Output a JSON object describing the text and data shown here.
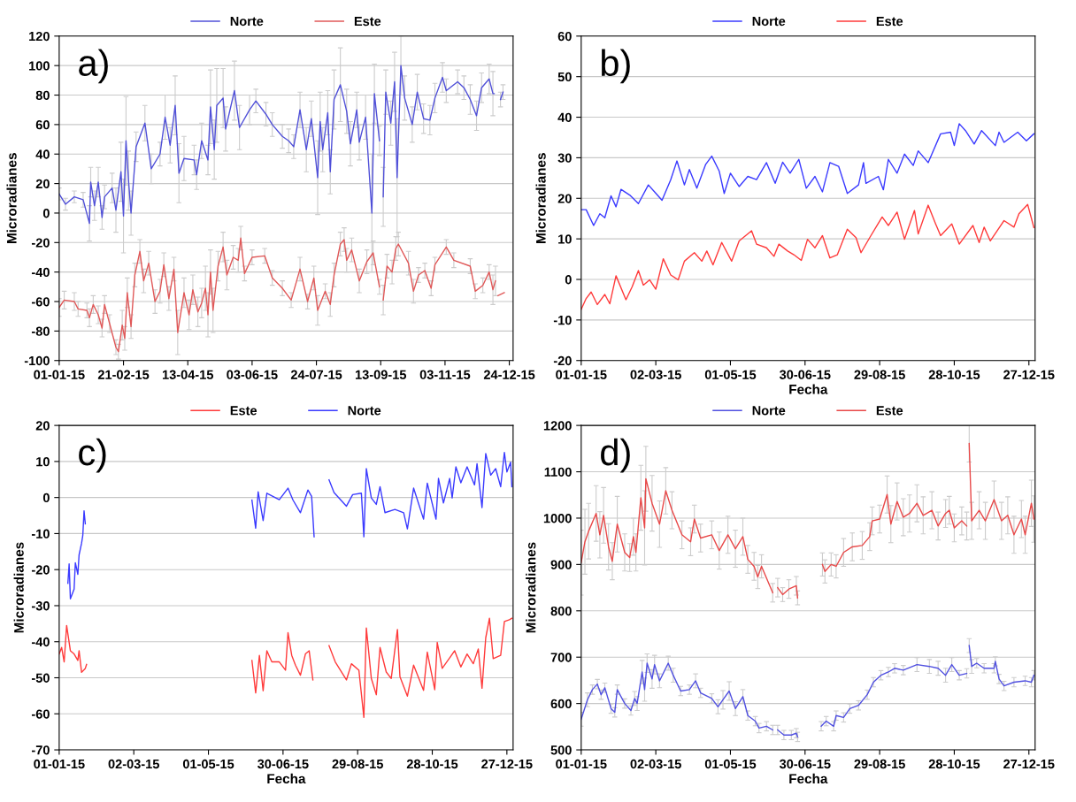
{
  "chart_data": [
    {
      "type": "line",
      "annotations": [
        "a)"
      ],
      "ylabel": "Microradianes",
      "legend": "top",
      "grid": "y",
      "xlim": [
        "2015-01-01",
        "2015-12-27"
      ],
      "xticks": [
        {
          "value": "2015-01-01",
          "label": "01-01-15"
        },
        {
          "value": "2015-02-21",
          "label": "21-02-15"
        },
        {
          "value": "2015-04-13",
          "label": "13-04-15"
        },
        {
          "value": "2015-06-03",
          "label": "03-06-15"
        },
        {
          "value": "2015-07-24",
          "label": "24-07-15"
        },
        {
          "value": "2015-09-13",
          "label": "13-09-15"
        },
        {
          "value": "2015-11-03",
          "label": "03-11-15"
        },
        {
          "value": "2015-12-24",
          "label": "24-12-15"
        }
      ],
      "ylim": [
        -100,
        120
      ],
      "yticks": [
        -100,
        -80,
        -60,
        -40,
        -20,
        0,
        20,
        40,
        60,
        80,
        100,
        120
      ],
      "series": [
        {
          "name": "Norte",
          "color": "#5050d8",
          "x": [
            "2015-01-01",
            "2015-01-06",
            "2015-01-13",
            "2015-01-20",
            "2015-01-25",
            "2015-01-26",
            "2015-01-29",
            "2015-02-01",
            "2015-02-04",
            "2015-02-06",
            "2015-02-12",
            "2015-02-15",
            "2015-02-19",
            "2015-02-21",
            "2015-02-23",
            "2015-02-25",
            "2015-02-27",
            "2015-03-03",
            "2015-03-10",
            "2015-03-15",
            "2015-03-22",
            "2015-03-26",
            "2015-03-30",
            "2015-04-03",
            "2015-04-06",
            "2015-04-10",
            "2015-04-18",
            "2015-04-20",
            "2015-04-24",
            "2015-04-29",
            "2015-05-01",
            "2015-05-04",
            "2015-05-06",
            "2015-05-11",
            "2015-05-13",
            "2015-05-20",
            "2015-05-24",
            "2015-06-01",
            "2015-06-06",
            "2015-06-14",
            "2015-06-19",
            "2015-06-27",
            "2015-07-02",
            "2015-07-06",
            "2015-07-11",
            "2015-07-16",
            "2015-07-20",
            "2015-07-25",
            "2015-07-27",
            "2015-07-29",
            "2015-08-02",
            "2015-08-04",
            "2015-08-07",
            "2015-08-12",
            "2015-08-17",
            "2015-08-20",
            "2015-08-25",
            "2015-08-27",
            "2015-09-01",
            "2015-09-06",
            "2015-09-08",
            "2015-09-12",
            "2015-09-13",
            "2015-09-15",
            "2015-09-17",
            "2015-09-21",
            "2015-09-24",
            "2015-09-26",
            "2015-09-29",
            "2015-10-02",
            "2015-10-08",
            "2015-10-12",
            "2015-10-17",
            "2015-10-22",
            "2015-10-26",
            "2015-11-01",
            "2015-11-04",
            "2015-11-13",
            "2015-11-18",
            "2015-11-23",
            "2015-11-28",
            "2015-12-02",
            "2015-12-08",
            "2015-12-11",
            "2015-12-12",
            "2015-12-14",
            "2015-12-17",
            "2015-12-19"
          ],
          "values": [
            13,
            6,
            11,
            9,
            -7,
            21,
            5,
            21,
            -3,
            11,
            17,
            2,
            28,
            -2,
            49,
            22,
            0,
            45,
            61,
            30,
            40,
            65,
            46,
            73,
            27,
            37,
            36,
            26,
            49,
            36,
            72,
            43,
            73,
            78,
            57,
            83,
            58,
            70,
            76,
            67,
            60,
            52,
            49,
            45,
            70,
            43,
            64,
            24,
            62,
            43,
            68,
            28,
            77,
            87,
            69,
            47,
            70,
            48,
            65,
            0,
            81,
            49,
            null,
            11,
            82,
            61,
            89,
            24,
            100,
            78,
            60,
            82,
            64,
            63,
            78,
            92,
            83,
            89,
            85,
            77,
            66,
            85,
            91,
            81,
            81,
            null,
            77,
            82
          ],
          "errors": [
            4,
            4,
            4,
            5,
            12,
            10,
            10,
            10,
            8,
            8,
            10,
            15,
            20,
            25,
            30,
            20,
            15,
            10,
            12,
            10,
            8,
            15,
            12,
            20,
            20,
            15,
            10,
            10,
            12,
            10,
            25,
            20,
            25,
            20,
            15,
            20,
            15,
            10,
            8,
            8,
            8,
            8,
            8,
            8,
            12,
            15,
            12,
            25,
            20,
            15,
            15,
            15,
            20,
            25,
            15,
            15,
            12,
            12,
            15,
            40,
            20,
            10,
            null,
            20,
            15,
            15,
            20,
            40,
            20,
            15,
            12,
            12,
            10,
            10,
            10,
            10,
            8,
            8,
            8,
            10,
            10,
            10,
            10,
            15,
            null,
            null,
            5,
            5
          ]
        },
        {
          "name": "Este",
          "color": "#e05858",
          "x": [
            "2015-01-01",
            "2015-01-05",
            "2015-01-13",
            "2015-01-16",
            "2015-01-23",
            "2015-01-25",
            "2015-01-28",
            "2015-02-01",
            "2015-02-04",
            "2015-02-06",
            "2015-02-10",
            "2015-02-15",
            "2015-02-17",
            "2015-02-20",
            "2015-02-22",
            "2015-02-24",
            "2015-02-27",
            "2015-03-02",
            "2015-03-06",
            "2015-03-09",
            "2015-03-13",
            "2015-03-18",
            "2015-03-22",
            "2015-03-25",
            "2015-03-29",
            "2015-04-02",
            "2015-04-05",
            "2015-04-10",
            "2015-04-14",
            "2015-04-17",
            "2015-04-21",
            "2015-04-24",
            "2015-04-27",
            "2015-04-29",
            "2015-05-01",
            "2015-05-03",
            "2015-05-07",
            "2015-05-11",
            "2015-05-14",
            "2015-05-19",
            "2015-05-23",
            "2015-05-25",
            "2015-05-28",
            "2015-06-03",
            "2015-06-13",
            "2015-06-19",
            "2015-06-27",
            "2015-07-04",
            "2015-07-11",
            "2015-07-17",
            "2015-07-22",
            "2015-07-25",
            "2015-07-31",
            "2015-08-04",
            "2015-08-07",
            "2015-08-12",
            "2015-08-15",
            "2015-08-17",
            "2015-08-21",
            "2015-08-27",
            "2015-09-02",
            "2015-09-07",
            "2015-09-12",
            "2015-09-13",
            "2015-09-15",
            "2015-09-18",
            "2015-09-22",
            "2015-09-25",
            "2015-09-27",
            "2015-10-05",
            "2015-10-09",
            "2015-10-13",
            "2015-10-18",
            "2015-10-23",
            "2015-10-26",
            "2015-11-04",
            "2015-11-10",
            "2015-11-23",
            "2015-11-27",
            "2015-12-03",
            "2015-12-08",
            "2015-12-11",
            "2015-12-13",
            "2015-12-14",
            "2015-12-15",
            "2015-12-20"
          ],
          "values": [
            -64,
            -59,
            -60,
            -65,
            -66,
            -71,
            -62,
            -69,
            -78,
            -62,
            -75,
            -91,
            -94,
            -76,
            -85,
            -54,
            -77,
            -42,
            -26,
            -46,
            -34,
            -60,
            -53,
            -35,
            -58,
            -38,
            -81,
            -54,
            -69,
            -52,
            -67,
            -61,
            -51,
            -69,
            -40,
            -66,
            -36,
            -23,
            -42,
            -30,
            -32,
            -17,
            -41,
            -30,
            -29,
            -44,
            -51,
            -59,
            -38,
            -60,
            -44,
            -66,
            -53,
            -62,
            -42,
            -21,
            -18,
            -32,
            -25,
            -46,
            -33,
            -27,
            -50,
            null,
            -59,
            -36,
            -40,
            -24,
            -21,
            -34,
            -53,
            -42,
            -39,
            -51,
            -35,
            -23,
            -32,
            -36,
            -53,
            -49,
            -40,
            -52,
            -46,
            null,
            -56,
            -54
          ],
          "errors": [
            6,
            6,
            6,
            5,
            5,
            6,
            6,
            6,
            6,
            6,
            6,
            5,
            5,
            10,
            8,
            10,
            8,
            8,
            8,
            8,
            8,
            8,
            8,
            8,
            8,
            8,
            15,
            10,
            10,
            10,
            10,
            10,
            15,
            15,
            15,
            15,
            10,
            10,
            10,
            8,
            8,
            8,
            5,
            5,
            5,
            5,
            5,
            5,
            8,
            5,
            8,
            10,
            5,
            8,
            8,
            8,
            8,
            8,
            8,
            8,
            8,
            8,
            5,
            null,
            10,
            8,
            8,
            8,
            8,
            8,
            8,
            5,
            5,
            5,
            5,
            5,
            5,
            5,
            5,
            5,
            5,
            10,
            10,
            null,
            null,
            null
          ]
        }
      ]
    },
    {
      "type": "line",
      "annotations": [
        "b)"
      ],
      "xlabel": "Fecha",
      "ylabel": "Microradianes",
      "legend": "top",
      "grid": "y",
      "xlim": [
        "2015-01-01",
        "2016-01-01"
      ],
      "xticks": [
        {
          "value": "2015-01-01",
          "label": "01-01-15"
        },
        {
          "value": "2015-03-02",
          "label": "02-03-15"
        },
        {
          "value": "2015-05-01",
          "label": "01-05-15"
        },
        {
          "value": "2015-06-30",
          "label": "30-06-15"
        },
        {
          "value": "2015-08-29",
          "label": "29-08-15"
        },
        {
          "value": "2015-10-28",
          "label": "28-10-15"
        },
        {
          "value": "2015-12-27",
          "label": "27-12-15"
        }
      ],
      "ylim": [
        -20,
        60
      ],
      "yticks": [
        -20,
        -10,
        0,
        10,
        20,
        30,
        40,
        50,
        60
      ],
      "series": [
        {
          "name": "Norte",
          "color": "#3a3aff",
          "x": [
            "2015-01-01",
            "2015-01-05",
            "2015-01-11",
            "2015-01-16",
            "2015-01-20",
            "2015-01-25",
            "2015-01-29",
            "2015-02-02",
            "2015-02-09",
            "2015-02-16",
            "2015-02-24",
            "2015-03-01",
            "2015-03-07",
            "2015-03-14",
            "2015-03-19",
            "2015-03-25",
            "2015-03-29",
            "2015-04-04",
            "2015-04-11",
            "2015-04-16",
            "2015-04-22",
            "2015-04-26",
            "2015-05-01",
            "2015-05-08",
            "2015-05-15",
            "2015-05-22",
            "2015-05-30",
            "2015-06-06",
            "2015-06-12",
            "2015-06-18",
            "2015-06-25",
            "2015-07-01",
            "2015-07-08",
            "2015-07-14",
            "2015-07-20",
            "2015-07-27",
            "2015-08-03",
            "2015-08-12",
            "2015-08-16",
            "2015-08-18",
            "2015-08-28",
            "2015-09-01",
            "2015-09-05",
            "2015-09-12",
            "2015-09-18",
            "2015-09-25",
            "2015-09-29",
            "2015-10-07",
            "2015-10-17",
            "2015-10-25",
            "2015-10-28",
            "2015-11-01",
            "2015-11-06",
            "2015-11-13",
            "2015-11-19",
            "2015-11-30",
            "2015-12-03",
            "2015-12-07",
            "2015-12-18",
            "2015-12-25",
            "2015-12-31"
          ],
          "values": [
            17.2,
            17.2,
            13.3,
            16.2,
            15.2,
            20.6,
            17.9,
            22.2,
            20.8,
            18.7,
            23.3,
            21.6,
            19.5,
            24.6,
            29.2,
            23.3,
            27.1,
            22.5,
            28.3,
            30.4,
            26.7,
            21.2,
            26.2,
            22.9,
            25.4,
            24.6,
            28.8,
            23.7,
            28.9,
            26.2,
            29.6,
            22.5,
            25.4,
            21.6,
            28.8,
            27.9,
            21.2,
            23.3,
            28.8,
            23.7,
            25.4,
            22.1,
            29.6,
            26.2,
            30.9,
            28.1,
            31.7,
            28.8,
            35.9,
            36.3,
            33,
            38.4,
            36.7,
            33.4,
            36.7,
            33,
            36.3,
            33.8,
            36.3,
            34.2,
            35.9
          ]
        },
        {
          "name": "Este",
          "color": "#ff3a3a",
          "x": [
            "2015-01-01",
            "2015-01-05",
            "2015-01-09",
            "2015-01-14",
            "2015-01-20",
            "2015-01-24",
            "2015-01-29",
            "2015-02-06",
            "2015-02-11",
            "2015-02-16",
            "2015-02-20",
            "2015-02-25",
            "2015-03-02",
            "2015-03-08",
            "2015-03-14",
            "2015-03-20",
            "2015-03-25",
            "2015-04-02",
            "2015-04-08",
            "2015-04-12",
            "2015-04-17",
            "2015-04-24",
            "2015-05-02",
            "2015-05-08",
            "2015-05-18",
            "2015-05-22",
            "2015-05-30",
            "2015-06-05",
            "2015-06-09",
            "2015-06-16",
            "2015-06-21",
            "2015-06-27",
            "2015-07-02",
            "2015-07-08",
            "2015-07-14",
            "2015-07-20",
            "2015-07-26",
            "2015-08-03",
            "2015-08-10",
            "2015-08-14",
            "2015-08-21",
            "2015-08-31",
            "2015-09-05",
            "2015-09-12",
            "2015-09-18",
            "2015-09-26",
            "2015-09-29",
            "2015-10-07",
            "2015-10-13",
            "2015-10-17",
            "2015-10-26",
            "2015-11-01",
            "2015-11-12",
            "2015-11-17",
            "2015-11-21",
            "2015-11-26",
            "2015-12-07",
            "2015-12-15",
            "2015-12-19",
            "2015-12-26",
            "2015-12-31"
          ],
          "values": [
            -7.4,
            -4.7,
            -3.1,
            -6.2,
            -3.7,
            -6,
            0.9,
            -5,
            -1.8,
            2.2,
            -1.4,
            -0.1,
            -2.4,
            5.1,
            1.1,
            -0.1,
            4.5,
            6.6,
            4.5,
            7,
            3.6,
            9.1,
            4.5,
            9.5,
            12,
            8.7,
            7.8,
            5.7,
            8.7,
            7,
            6.1,
            4.7,
            9.9,
            7.8,
            10.8,
            5.3,
            6.1,
            12.4,
            10.3,
            6.6,
            10.3,
            15.4,
            13.3,
            16.6,
            9.9,
            17,
            11.2,
            18.3,
            13.7,
            10.8,
            13.7,
            8.7,
            13.3,
            9.1,
            12.9,
            9.5,
            14.5,
            12.9,
            16.2,
            18.5,
            12.8
          ]
        }
      ]
    },
    {
      "type": "line",
      "annotations": [
        "c)"
      ],
      "xlabel": "Fecha",
      "ylabel": "Microradianes",
      "legend": "top",
      "grid": "y",
      "xlim": [
        "2015-01-01",
        "2016-01-01"
      ],
      "xticks": [
        {
          "value": "2015-01-01",
          "label": "01-01-15"
        },
        {
          "value": "2015-03-02",
          "label": "02-03-15"
        },
        {
          "value": "2015-05-01",
          "label": "01-05-15"
        },
        {
          "value": "2015-06-30",
          "label": "30-06-15"
        },
        {
          "value": "2015-08-29",
          "label": "29-08-15"
        },
        {
          "value": "2015-10-28",
          "label": "28-10-15"
        },
        {
          "value": "2015-12-27",
          "label": "27-12-15"
        }
      ],
      "ylim": [
        -70,
        20
      ],
      "yticks": [
        -70,
        -60,
        -50,
        -40,
        -30,
        -20,
        -10,
        0,
        10,
        20
      ],
      "series": [
        {
          "name": "Este",
          "color": "#ff3a3a",
          "x": [
            "2015-01-01",
            "2015-01-03",
            "2015-01-05",
            "2015-01-07",
            "2015-01-10",
            "2015-01-13",
            "2015-01-16",
            "2015-01-17",
            "2015-01-19",
            "2015-01-22",
            "2015-01-23",
            "2015-04-01",
            "2015-06-05",
            "2015-06-08",
            "2015-06-11",
            "2015-06-14",
            "2015-06-17",
            "2015-06-21",
            "2015-06-27",
            "2015-07-02",
            "2015-07-04",
            "2015-07-07",
            "2015-07-10",
            "2015-07-14",
            "2015-07-18",
            "2015-07-21",
            "2015-07-24",
            "2015-07-30",
            "2015-08-06",
            "2015-08-11",
            "2015-08-20",
            "2015-08-24",
            "2015-08-30",
            "2015-09-03",
            "2015-09-05",
            "2015-09-09",
            "2015-09-13",
            "2015-09-16",
            "2015-09-21",
            "2015-09-25",
            "2015-09-30",
            "2015-10-02",
            "2015-10-08",
            "2015-10-13",
            "2015-10-21",
            "2015-10-24",
            "2015-10-30",
            "2015-11-01",
            "2015-11-05",
            "2015-11-15",
            "2015-11-20",
            "2015-11-25",
            "2015-11-30",
            "2015-12-04",
            "2015-12-07",
            "2015-12-10",
            "2015-12-13",
            "2015-12-16",
            "2015-12-22",
            "2015-12-25",
            "2015-12-29",
            "2015-12-31"
          ],
          "values": [
            -43.4,
            -41.6,
            -45.6,
            -35.5,
            -42.5,
            -43.4,
            -45.2,
            -42.5,
            -48.5,
            -47.4,
            -46.3,
            null,
            -45.2,
            -54.2,
            -43.8,
            -53.6,
            -42.5,
            -45.6,
            -45.6,
            -47.9,
            -37.5,
            -43.8,
            -46.5,
            -49.3,
            -43.4,
            -42.5,
            -50.6,
            null,
            -41.1,
            -45.6,
            -50.6,
            -46.1,
            -47.9,
            -61,
            -36.2,
            -50.2,
            -54.7,
            -41.6,
            -48.4,
            -50.2,
            -36.6,
            -49.7,
            -55.1,
            -46.5,
            -53.5,
            -42.9,
            -53.3,
            -40.2,
            -47.4,
            -42.5,
            -47,
            -43.4,
            -46.1,
            -42,
            -52.9,
            -38.9,
            -33.5,
            -44.7,
            -43.8,
            -34.4,
            -33.9,
            -33.5
          ]
        },
        {
          "name": "Norte",
          "color": "#3a3aff",
          "x": [
            "2015-01-08",
            "2015-01-09",
            "2015-01-10",
            "2015-01-13",
            "2015-01-14",
            "2015-01-16",
            "2015-01-17",
            "2015-01-19",
            "2015-01-20",
            "2015-01-21",
            "2015-01-22",
            "2015-04-01",
            "2015-06-05",
            "2015-06-08",
            "2015-06-10",
            "2015-06-14",
            "2015-06-17",
            "2015-06-27",
            "2015-07-04",
            "2015-07-08",
            "2015-07-14",
            "2015-07-20",
            "2015-07-23",
            "2015-07-25",
            "2015-07-30",
            "2015-08-06",
            "2015-08-10",
            "2015-08-20",
            "2015-08-25",
            "2015-09-01",
            "2015-09-03",
            "2015-09-05",
            "2015-09-09",
            "2015-09-13",
            "2015-09-16",
            "2015-09-20",
            "2015-09-28",
            "2015-10-05",
            "2015-10-08",
            "2015-10-13",
            "2015-10-21",
            "2015-10-24",
            "2015-10-31",
            "2015-11-02",
            "2015-11-06",
            "2015-11-11",
            "2015-11-13",
            "2015-11-16",
            "2015-11-20",
            "2015-11-25",
            "2015-12-01",
            "2015-12-03",
            "2015-12-07",
            "2015-12-10",
            "2015-12-14",
            "2015-12-18",
            "2015-12-22",
            "2015-12-25",
            "2015-12-27",
            "2015-12-30",
            "2015-12-31"
          ],
          "values": [
            -23.8,
            -18.4,
            -28.1,
            -25.4,
            -18.1,
            -21.3,
            -15.9,
            -12.7,
            -10.5,
            -3.7,
            -7.3,
            null,
            -0.7,
            -8.5,
            1.6,
            -6.4,
            1.2,
            -0.6,
            2.6,
            -0.7,
            -4.2,
            2.1,
            0.3,
            -10.9,
            null,
            4.9,
            1.4,
            -2.4,
            0.8,
            1.2,
            -10.9,
            8,
            -0.1,
            -1.9,
            3,
            -4.2,
            -3.3,
            -4.2,
            -8.7,
            2.6,
            -6,
            4,
            -6,
            5.3,
            -1.5,
            5.3,
            -0.1,
            8.5,
            4.1,
            8.5,
            3.5,
            9.4,
            -2.8,
            12.2,
            6.2,
            8,
            3,
            12.5,
            7.1,
            9.8,
            3
          ]
        }
      ]
    },
    {
      "type": "line",
      "annotations": [
        "d)"
      ],
      "xlabel": "Fecha",
      "ylabel": "Microradianes",
      "legend": "top",
      "grid": "y",
      "xlim": [
        "2015-01-01",
        "2016-01-01"
      ],
      "xticks": [
        {
          "value": "2015-01-01",
          "label": "01-01-15"
        },
        {
          "value": "2015-03-02",
          "label": "02-03-15"
        },
        {
          "value": "2015-05-01",
          "label": "01-05-15"
        },
        {
          "value": "2015-06-30",
          "label": "30-06-15"
        },
        {
          "value": "2015-08-29",
          "label": "29-08-15"
        },
        {
          "value": "2015-10-28",
          "label": "28-10-15"
        },
        {
          "value": "2015-12-27",
          "label": "27-12-15"
        }
      ],
      "ylim": [
        500,
        1200
      ],
      "yticks": [
        500,
        600,
        700,
        800,
        900,
        1000,
        1100,
        1200
      ],
      "series": [
        {
          "name": "Norte",
          "color": "#5050e0",
          "x": [
            "2015-01-01",
            "2015-01-06",
            "2015-01-10",
            "2015-01-14",
            "2015-01-17",
            "2015-01-20",
            "2015-01-25",
            "2015-01-28",
            "2015-01-30",
            "2015-02-05",
            "2015-02-10",
            "2015-02-13",
            "2015-02-15",
            "2015-02-19",
            "2015-02-21",
            "2015-02-23",
            "2015-02-27",
            "2015-03-01",
            "2015-03-05",
            "2015-03-12",
            "2015-03-16",
            "2015-03-22",
            "2015-03-29",
            "2015-04-03",
            "2015-04-07",
            "2015-04-16",
            "2015-04-21",
            "2015-04-25",
            "2015-04-30",
            "2015-05-05",
            "2015-05-11",
            "2015-05-15",
            "2015-05-21",
            "2015-05-24",
            "2015-05-30",
            "2015-06-04",
            "2015-06-06",
            "2015-06-08",
            "2015-06-13",
            "2015-06-19",
            "2015-06-23",
            "2015-06-24",
            "2015-06-30",
            "2015-07-13",
            "2015-07-17",
            "2015-07-23",
            "2015-07-25",
            "2015-07-31",
            "2015-08-05",
            "2015-08-12",
            "2015-08-19",
            "2015-08-24",
            "2015-08-30",
            "2015-09-05",
            "2015-09-10",
            "2015-09-17",
            "2015-09-28",
            "2015-10-08",
            "2015-10-15",
            "2015-10-21",
            "2015-10-26",
            "2015-11-01",
            "2015-11-07",
            "2015-11-08",
            "2015-11-09",
            "2015-11-11",
            "2015-11-15",
            "2015-11-21",
            "2015-11-29",
            "2015-11-30",
            "2015-12-03",
            "2015-12-07",
            "2015-12-15",
            "2015-12-24",
            "2015-12-29",
            "2015-12-31"
          ],
          "values": [
            566,
            608,
            630,
            642,
            619,
            634,
            589,
            581,
            630,
            600,
            585,
            611,
            600,
            668,
            630,
            687,
            653,
            684,
            649,
            687,
            661,
            627,
            630,
            649,
            623,
            611,
            593,
            608,
            627,
            589,
            615,
            574,
            562,
            547,
            551,
            543,
            null,
            543,
            532,
            532,
            536,
            528,
            null,
            551,
            562,
            551,
            574,
            570,
            589,
            596,
            619,
            646,
            661,
            668,
            676,
            672,
            684,
            680,
            676,
            661,
            684,
            661,
            665,
            null,
            725,
            680,
            687,
            676,
            676,
            691,
            653,
            638,
            646,
            649,
            646,
            661
          ],
          "errors": [
            15,
            15,
            10,
            10,
            10,
            10,
            10,
            10,
            10,
            10,
            10,
            15,
            15,
            25,
            25,
            20,
            20,
            20,
            15,
            15,
            15,
            10,
            10,
            15,
            10,
            10,
            15,
            20,
            20,
            15,
            15,
            10,
            10,
            10,
            10,
            10,
            null,
            10,
            10,
            10,
            10,
            10,
            null,
            10,
            10,
            10,
            10,
            10,
            10,
            10,
            10,
            10,
            10,
            10,
            10,
            10,
            15,
            15,
            15,
            15,
            15,
            10,
            10,
            null,
            15,
            15,
            10,
            10,
            10,
            10,
            10,
            10,
            10,
            10,
            10,
            10
          ]
        },
        {
          "name": "Este",
          "color": "#e84848",
          "x": [
            "2015-01-01",
            "2015-01-04",
            "2015-01-07",
            "2015-01-13",
            "2015-01-16",
            "2015-01-19",
            "2015-01-23",
            "2015-01-26",
            "2015-01-30",
            "2015-02-05",
            "2015-02-09",
            "2015-02-12",
            "2015-02-14",
            "2015-02-18",
            "2015-02-21",
            "2015-02-22",
            "2015-02-27",
            "2015-03-05",
            "2015-03-10",
            "2015-03-15",
            "2015-03-23",
            "2015-03-30",
            "2015-04-02",
            "2015-04-07",
            "2015-04-16",
            "2015-04-22",
            "2015-04-29",
            "2015-05-05",
            "2015-05-11",
            "2015-05-15",
            "2015-05-20",
            "2015-05-23",
            "2015-05-26",
            "2015-06-04",
            "2015-06-06",
            "2015-06-08",
            "2015-06-12",
            "2015-06-17",
            "2015-06-23",
            "2015-06-24",
            "2015-06-30",
            "2015-07-14",
            "2015-07-16",
            "2015-07-21",
            "2015-07-25",
            "2015-07-31",
            "2015-08-07",
            "2015-08-15",
            "2015-08-21",
            "2015-08-23",
            "2015-08-29",
            "2015-09-04",
            "2015-09-07",
            "2015-09-12",
            "2015-09-17",
            "2015-09-22",
            "2015-09-28",
            "2015-10-03",
            "2015-10-10",
            "2015-10-15",
            "2015-10-21",
            "2015-10-24",
            "2015-10-28",
            "2015-11-03",
            "2015-11-07",
            "2015-11-08",
            "2015-11-09",
            "2015-11-11",
            "2015-11-17",
            "2015-11-22",
            "2015-11-29",
            "2015-12-05",
            "2015-12-10",
            "2015-12-15",
            "2015-12-21",
            "2015-12-24",
            "2015-12-29",
            "2015-12-31"
          ],
          "values": [
            904,
            949,
            972,
            1010,
            964,
            1006,
            938,
            907,
            987,
            926,
            915,
            960,
            926,
            1044,
            979,
            1085,
            1032,
            987,
            1059,
            1017,
            964,
            949,
            998,
            957,
            964,
            930,
            964,
            934,
            960,
            911,
            896,
            873,
            896,
            839,
            null,
            850,
            835,
            847,
            854,
            828,
            null,
            900,
            885,
            900,
            896,
            926,
            938,
            941,
            960,
            994,
            998,
            1051,
            987,
            1036,
            1002,
            1010,
            1032,
            1006,
            1017,
            983,
            1010,
            1017,
            979,
            994,
            983,
            null,
            1161,
            994,
            1017,
            994,
            1040,
            994,
            1006,
            964,
            998,
            964,
            1032,
            998
          ],
          "errors": [
            70,
            70,
            60,
            60,
            50,
            60,
            50,
            40,
            60,
            40,
            30,
            40,
            40,
            70,
            80,
            70,
            60,
            50,
            50,
            40,
            30,
            30,
            30,
            30,
            30,
            40,
            40,
            40,
            40,
            30,
            30,
            25,
            25,
            20,
            null,
            20,
            15,
            20,
            20,
            15,
            null,
            25,
            25,
            25,
            25,
            30,
            30,
            30,
            30,
            30,
            30,
            40,
            40,
            40,
            40,
            40,
            40,
            40,
            40,
            30,
            30,
            30,
            30,
            30,
            30,
            null,
            40,
            40,
            40,
            40,
            40,
            40,
            40,
            40,
            40,
            40,
            50,
            50
          ]
        }
      ]
    }
  ]
}
